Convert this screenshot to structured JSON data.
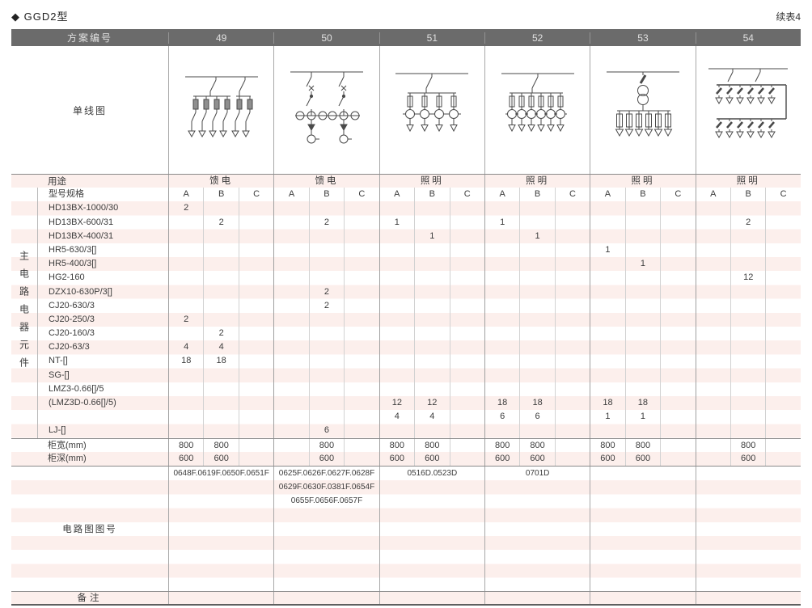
{
  "page": {
    "title": "◆ GGD2型",
    "continuation": "续表4"
  },
  "header": {
    "label": "方案编号",
    "schemes": [
      "49",
      "50",
      "51",
      "52",
      "53",
      "54"
    ]
  },
  "diagram_row": {
    "label": "单线图",
    "diagrams": [
      "feeder-2-switch-6-fuse-branch",
      "feeder-2-breaker-meter-branch",
      "lighting-1-switch-4-fuse-ct-branch",
      "lighting-1-switch-6-fuse-ct-branch",
      "lighting-breaker-transformer-6-fuse-branch",
      "lighting-2-switch-12-breaker-branch"
    ]
  },
  "usage_row": {
    "label": "用途",
    "values": [
      "馈电",
      "馈电",
      "照明",
      "照明",
      "照明",
      "照明"
    ]
  },
  "spec_header": {
    "label": "型号规格",
    "cols": [
      "A",
      "B",
      "C"
    ]
  },
  "left_vertical_label": "主电路电器元件",
  "component_rows": [
    {
      "label": "HD13BX-1000/30",
      "values": [
        "2",
        "",
        "",
        "",
        "",
        "",
        "",
        "",
        "",
        "",
        "",
        "",
        "",
        "",
        "",
        "",
        "",
        ""
      ]
    },
    {
      "label": "HD13BX-600/31",
      "values": [
        "",
        "2",
        "",
        "",
        "2",
        "",
        "1",
        "",
        "",
        "1",
        "",
        "",
        "",
        "",
        "",
        "",
        "2",
        ""
      ]
    },
    {
      "label": "HD13BX-400/31",
      "values": [
        "",
        "",
        "",
        "",
        "",
        "",
        "",
        "1",
        "",
        "",
        "1",
        "",
        "",
        "",
        "",
        "",
        "",
        ""
      ]
    },
    {
      "label": "HR5-630/3[]",
      "values": [
        "",
        "",
        "",
        "",
        "",
        "",
        "",
        "",
        "",
        "",
        "",
        "",
        "1",
        "",
        "",
        "",
        "",
        ""
      ]
    },
    {
      "label": "HR5-400/3[]",
      "values": [
        "",
        "",
        "",
        "",
        "",
        "",
        "",
        "",
        "",
        "",
        "",
        "",
        "",
        "1",
        "",
        "",
        "",
        ""
      ]
    },
    {
      "label": "HG2-160",
      "values": [
        "",
        "",
        "",
        "",
        "",
        "",
        "",
        "",
        "",
        "",
        "",
        "",
        "",
        "",
        "",
        "",
        "12",
        ""
      ]
    },
    {
      "label": "DZX10-630P/3[]",
      "values": [
        "",
        "",
        "",
        "",
        "2",
        "",
        "",
        "",
        "",
        "",
        "",
        "",
        "",
        "",
        "",
        "",
        "",
        ""
      ]
    },
    {
      "label": "CJ20-630/3",
      "values": [
        "",
        "",
        "",
        "",
        "2",
        "",
        "",
        "",
        "",
        "",
        "",
        "",
        "",
        "",
        "",
        "",
        "",
        ""
      ]
    },
    {
      "label": "CJ20-250/3",
      "values": [
        "2",
        "",
        "",
        "",
        "",
        "",
        "",
        "",
        "",
        "",
        "",
        "",
        "",
        "",
        "",
        "",
        "",
        ""
      ]
    },
    {
      "label": "CJ20-160/3",
      "values": [
        "",
        "2",
        "",
        "",
        "",
        "",
        "",
        "",
        "",
        "",
        "",
        "",
        "",
        "",
        "",
        "",
        "",
        ""
      ]
    },
    {
      "label": "CJ20-63/3",
      "values": [
        "4",
        "4",
        "",
        "",
        "",
        "",
        "",
        "",
        "",
        "",
        "",
        "",
        "",
        "",
        "",
        "",
        "",
        ""
      ]
    },
    {
      "label": "NT-[]",
      "values": [
        "18",
        "18",
        "",
        "",
        "",
        "",
        "",
        "",
        "",
        "",
        "",
        "",
        "",
        "",
        "",
        "",
        "",
        ""
      ]
    },
    {
      "label": "SG-[]",
      "values": [
        "",
        "",
        "",
        "",
        "",
        "",
        "",
        "",
        "",
        "",
        "",
        "",
        "",
        "",
        "",
        "",
        "",
        ""
      ]
    },
    {
      "label": "LMZ3-0.66[]/5",
      "values": [
        "",
        "",
        "",
        "",
        "",
        "",
        "",
        "",
        "",
        "",
        "",
        "",
        "",
        "",
        "",
        "",
        "",
        ""
      ]
    },
    {
      "label": "(LMZ3D-0.66[]/5)",
      "values": [
        "",
        "",
        "",
        "",
        "",
        "",
        "12",
        "12",
        "",
        "18",
        "18",
        "",
        "18",
        "18",
        "",
        "",
        "",
        ""
      ]
    },
    {
      "label": "",
      "values": [
        "",
        "",
        "",
        "",
        "",
        "",
        "4",
        "4",
        "",
        "6",
        "6",
        "",
        "1",
        "1",
        "",
        "",
        "",
        ""
      ]
    },
    {
      "label": "LJ-[]",
      "values": [
        "",
        "",
        "",
        "",
        "6",
        "",
        "",
        "",
        "",
        "",
        "",
        "",
        "",
        "",
        "",
        "",
        "",
        ""
      ]
    }
  ],
  "width_row": {
    "label": "柜宽(mm)",
    "values": [
      "800",
      "800",
      "",
      "",
      "800",
      "",
      "800",
      "800",
      "",
      "800",
      "800",
      "",
      "800",
      "800",
      "",
      "",
      "800",
      ""
    ]
  },
  "depth_row": {
    "label": "柜深(mm)",
    "values": [
      "600",
      "600",
      "",
      "",
      "600",
      "",
      "600",
      "600",
      "",
      "600",
      "600",
      "",
      "600",
      "600",
      "",
      "",
      "600",
      ""
    ]
  },
  "circuit_row": {
    "label": "电路图图号",
    "lines": [
      [
        "0648F.0619F.0650F.0651F",
        "0625F.0626F.0627F.0628F",
        "0516D.0523D",
        "0701D",
        "",
        ""
      ],
      [
        "",
        "0629F.0630F.0381F.0654F",
        "",
        "",
        "",
        ""
      ],
      [
        "",
        "0655F.0656F.0657F",
        "",
        "",
        "",
        ""
      ],
      [
        "",
        "",
        "",
        "",
        "",
        ""
      ],
      [
        "",
        "",
        "",
        "",
        "",
        ""
      ],
      [
        "",
        "",
        "",
        "",
        "",
        ""
      ],
      [
        "",
        "",
        "",
        "",
        "",
        ""
      ],
      [
        "",
        "",
        "",
        "",
        "",
        ""
      ],
      [
        "",
        "",
        "",
        "",
        "",
        ""
      ]
    ]
  },
  "remark_row": {
    "label": "备注",
    "values": [
      "",
      "",
      "",
      "",
      "",
      ""
    ]
  }
}
